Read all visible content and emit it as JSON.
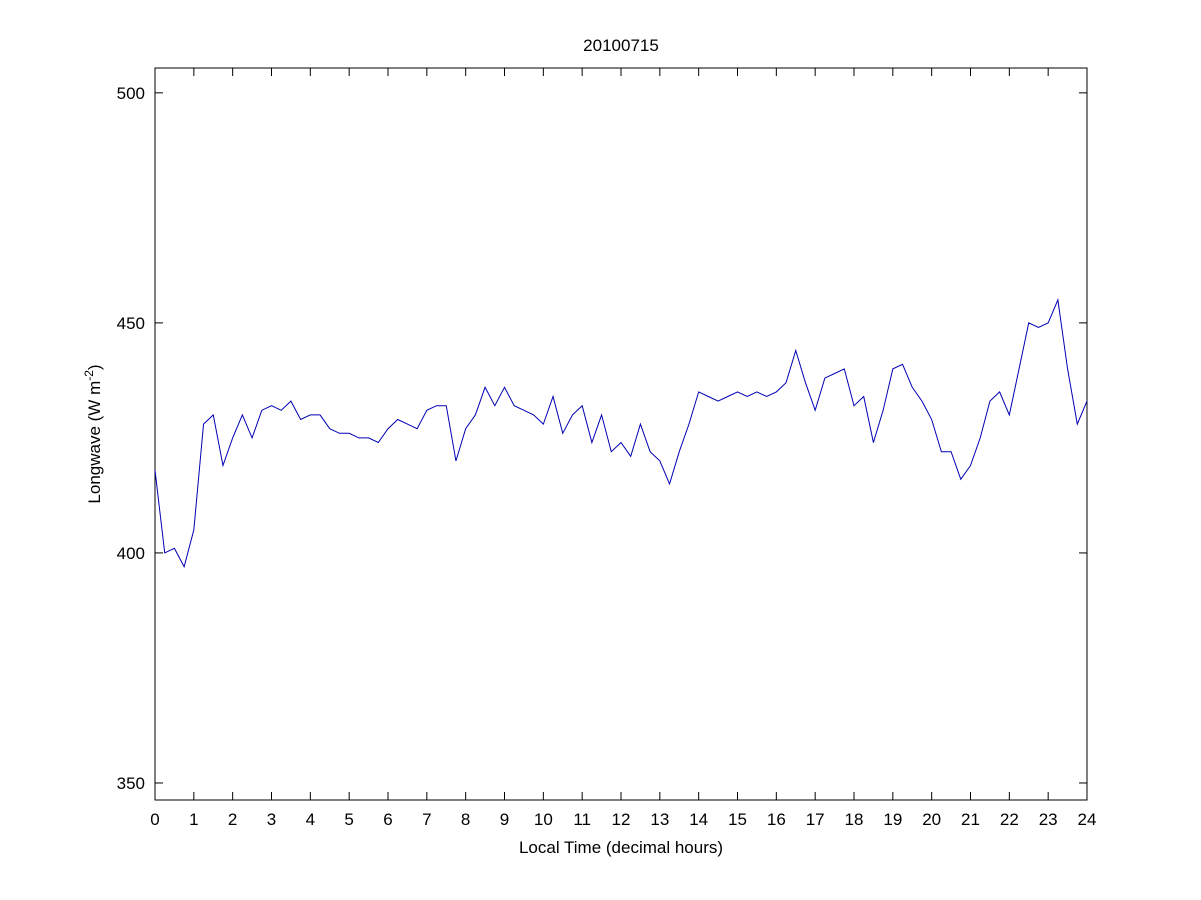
{
  "chart_data": {
    "type": "line",
    "title": "20100715",
    "xlabel": "Local Time (decimal hours)",
    "ylabel": {
      "text": "Longwave (W m",
      "superscript": "-2",
      "suffix": ")"
    },
    "x": [
      0,
      0.25,
      0.5,
      0.75,
      1,
      1.25,
      1.5,
      1.75,
      2,
      2.25,
      2.5,
      2.75,
      3,
      3.25,
      3.5,
      3.75,
      4,
      4.25,
      4.5,
      4.75,
      5,
      5.25,
      5.5,
      5.75,
      6,
      6.25,
      6.5,
      6.75,
      7,
      7.25,
      7.5,
      7.75,
      8,
      8.25,
      8.5,
      8.75,
      9,
      9.25,
      9.5,
      9.75,
      10,
      10.25,
      10.5,
      10.75,
      11,
      11.25,
      11.5,
      11.75,
      12,
      12.25,
      12.5,
      12.75,
      13,
      13.25,
      13.5,
      13.75,
      14,
      14.25,
      14.5,
      14.75,
      15,
      15.25,
      15.5,
      15.75,
      16,
      16.25,
      16.5,
      16.75,
      17,
      17.25,
      17.5,
      17.75,
      18,
      18.25,
      18.5,
      18.75,
      19,
      19.25,
      19.5,
      19.75,
      20,
      20.25,
      20.5,
      20.75,
      21,
      21.25,
      21.5,
      21.75,
      22,
      22.25,
      22.5,
      22.75,
      23,
      23.25,
      23.5,
      23.75,
      24
    ],
    "series": [
      {
        "color": "#0000b4",
        "values": [
          418,
          400,
          401,
          397,
          405,
          428,
          430,
          419,
          425,
          430,
          425,
          431,
          432,
          431,
          433,
          429,
          430,
          430,
          427,
          426,
          426,
          425,
          425,
          424,
          427,
          429,
          428,
          427,
          431,
          432,
          432,
          420,
          427,
          430,
          436,
          432,
          436,
          432,
          431,
          430,
          428,
          434,
          426,
          430,
          432,
          424,
          430,
          422,
          424,
          421,
          428,
          422,
          420,
          415,
          422,
          428,
          435,
          434,
          433,
          434,
          435,
          434,
          435,
          434,
          435,
          437,
          444,
          437,
          431,
          438,
          439,
          440,
          432,
          434,
          424,
          431,
          440,
          441,
          436,
          433,
          429,
          422,
          422,
          416,
          419,
          425,
          433,
          435,
          430,
          440,
          450,
          449,
          450,
          455,
          440,
          428,
          433
        ]
      }
    ],
    "xlim": [
      0,
      24
    ],
    "ylim": [
      346.3,
      505.4
    ],
    "xticks": [
      0,
      1,
      2,
      3,
      4,
      5,
      6,
      7,
      8,
      9,
      10,
      11,
      12,
      13,
      14,
      15,
      16,
      17,
      18,
      19,
      20,
      21,
      22,
      23,
      24
    ],
    "yticks": [
      350,
      400,
      450,
      500
    ]
  }
}
